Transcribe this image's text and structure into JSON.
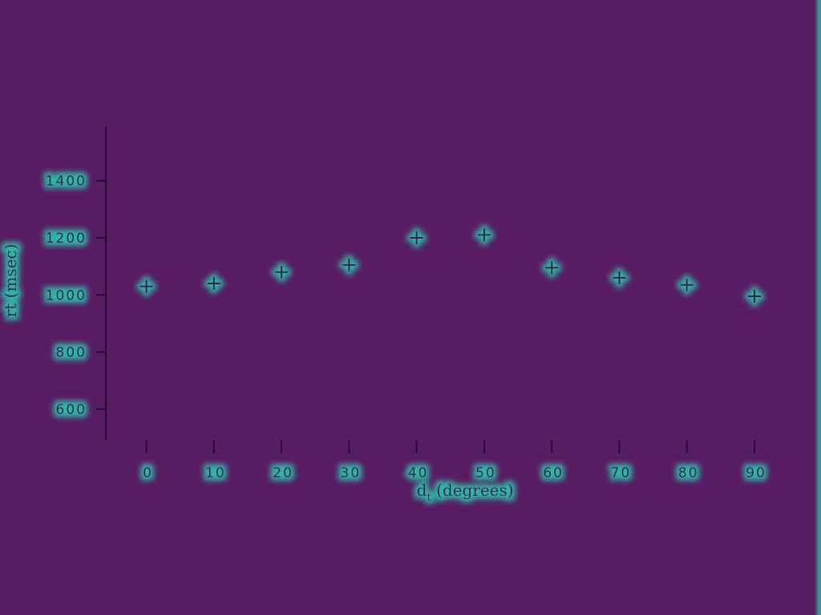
{
  "colors": {
    "background": "#581c63",
    "axis": "#2a0a33",
    "text": "#3b1f52",
    "halo": "#2fb4a4",
    "marker": "#3b1f52"
  },
  "chart_data": {
    "type": "scatter",
    "title": "",
    "xlabel": "d",
    "xlabel_subscript": "t",
    "xlabel_suffix": " (degrees)",
    "ylabel": "rt (msec)",
    "xlim": [
      -6,
      97
    ],
    "ylim": [
      490,
      1590
    ],
    "x_ticks": [
      0,
      10,
      20,
      30,
      40,
      50,
      60,
      70,
      80,
      90
    ],
    "x_tick_labels": [
      "0",
      "10",
      "20",
      "30",
      "40",
      "50",
      "60",
      "70",
      "80",
      "90"
    ],
    "y_ticks": [
      600,
      800,
      1000,
      1200,
      1400
    ],
    "y_tick_labels": [
      "600",
      "800",
      "1000",
      "1200",
      "1400"
    ],
    "marker": "+",
    "grid": false,
    "legend": "none",
    "series": [
      {
        "x": [
          0,
          10,
          20,
          30,
          40,
          50,
          60,
          70,
          80,
          90
        ],
        "y": [
          1030,
          1040,
          1080,
          1105,
          1200,
          1210,
          1095,
          1060,
          1035,
          995
        ]
      }
    ]
  }
}
